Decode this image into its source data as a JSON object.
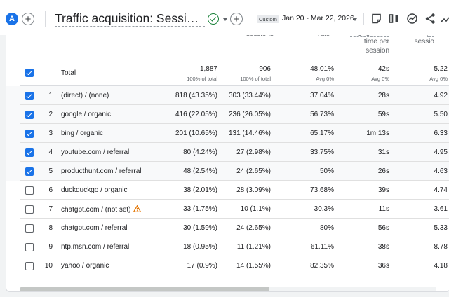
{
  "header": {
    "avatar_letter": "A",
    "title": "Traffic acquisition: Session sour…",
    "status_icon": "check-circle-icon",
    "date_tag": "Custom",
    "date_range": "Jan 20 - Mar 22, 2026",
    "tools": [
      "annotation-icon",
      "compare-icon",
      "insights-icon",
      "share-icon",
      "trend-icon"
    ]
  },
  "columns": {
    "label": "Total",
    "sessions_label_visible": "sessions",
    "rate_label_visible": "rate",
    "engagement_label_lines": [
      "engagement",
      "time per",
      "session"
    ],
    "events_label_lines": [
      "pe",
      "sessio"
    ]
  },
  "totals": {
    "users": "1,887",
    "users_sub": "100% of total",
    "sessions": "906",
    "sessions_sub": "100% of total",
    "rate": "48.01%",
    "rate_sub": "Avg 0%",
    "time": "42s",
    "time_sub": "Avg 0%",
    "events": "5.22",
    "events_sub": "Avg 0%"
  },
  "rows": [
    {
      "idx": "1",
      "source": "(direct) / (none)",
      "users": "818 (43.35%)",
      "sessions": "303 (33.44%)",
      "rate": "37.04%",
      "time": "28s",
      "events": "4.92",
      "checked": true
    },
    {
      "idx": "2",
      "source": "google / organic",
      "users": "416 (22.05%)",
      "sessions": "236 (26.05%)",
      "rate": "56.73%",
      "time": "59s",
      "events": "5.50",
      "checked": true
    },
    {
      "idx": "3",
      "source": "bing / organic",
      "users": "201 (10.65%)",
      "sessions": "131 (14.46%)",
      "rate": "65.17%",
      "time": "1m 13s",
      "events": "6.33",
      "checked": true
    },
    {
      "idx": "4",
      "source": "youtube.com / referral",
      "users": "80 (4.24%)",
      "sessions": "27 (2.98%)",
      "rate": "33.75%",
      "time": "31s",
      "events": "4.95",
      "checked": true
    },
    {
      "idx": "5",
      "source": "producthunt.com / referral",
      "users": "48 (2.54%)",
      "sessions": "24 (2.65%)",
      "rate": "50%",
      "time": "26s",
      "events": "4.63",
      "checked": true
    },
    {
      "idx": "6",
      "source": "duckduckgo / organic",
      "users": "38 (2.01%)",
      "sessions": "28 (3.09%)",
      "rate": "73.68%",
      "time": "39s",
      "events": "4.74",
      "checked": false
    },
    {
      "idx": "7",
      "source": "chatgpt.com / (not set)",
      "users": "33 (1.75%)",
      "sessions": "10 (1.1%)",
      "rate": "30.3%",
      "time": "11s",
      "events": "3.61",
      "checked": false,
      "warning": true
    },
    {
      "idx": "8",
      "source": "chatgpt.com / referral",
      "users": "30 (1.59%)",
      "sessions": "24 (2.65%)",
      "rate": "80%",
      "time": "56s",
      "events": "5.33",
      "checked": false
    },
    {
      "idx": "9",
      "source": "ntp.msn.com / referral",
      "users": "18 (0.95%)",
      "sessions": "11 (1.21%)",
      "rate": "61.11%",
      "time": "38s",
      "events": "8.78",
      "checked": false
    },
    {
      "idx": "10",
      "source": "yahoo / organic",
      "users": "17 (0.9%)",
      "sessions": "14 (1.55%)",
      "rate": "82.35%",
      "time": "36s",
      "events": "4.18",
      "checked": false
    }
  ],
  "scrollbar": {
    "horizontal_position_fraction": 0.6
  },
  "colors": {
    "accent": "#1a73e8",
    "success": "#188038",
    "warning": "#e37400"
  }
}
